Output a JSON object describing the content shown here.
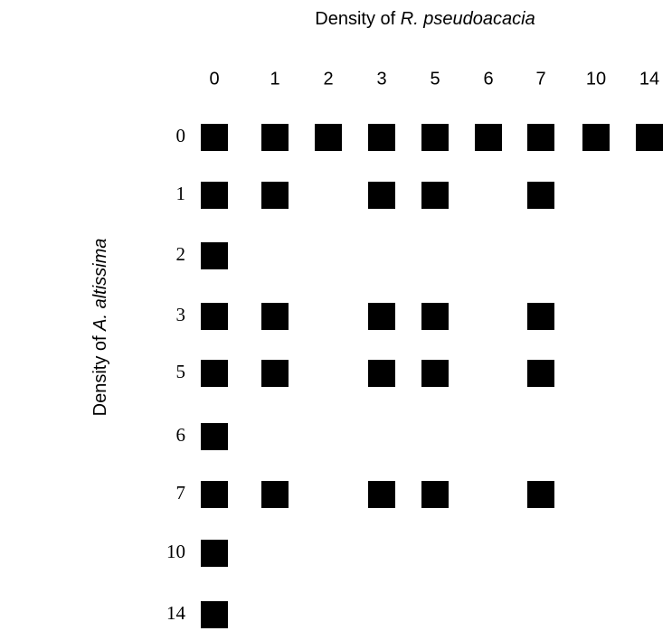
{
  "x_label": {
    "prefix": "Density of",
    "species": "R. pseudoacacia"
  },
  "y_label": {
    "prefix": "Density of",
    "species": "A. altissima"
  },
  "columns": [
    "0",
    "1",
    "2",
    "3",
    "5",
    "6",
    "7",
    "10",
    "14"
  ],
  "rows": [
    {
      "label": "0",
      "cells": [
        true,
        true,
        true,
        true,
        true,
        true,
        true,
        true,
        true
      ]
    },
    {
      "label": "1",
      "cells": [
        true,
        true,
        false,
        true,
        true,
        false,
        true,
        false,
        false
      ]
    },
    {
      "label": "2",
      "cells": [
        true,
        false,
        false,
        false,
        false,
        false,
        false,
        false,
        false
      ]
    },
    {
      "label": "3",
      "cells": [
        true,
        true,
        false,
        true,
        true,
        false,
        true,
        false,
        false
      ]
    },
    {
      "label": "5",
      "cells": [
        true,
        true,
        false,
        true,
        true,
        false,
        true,
        false,
        false
      ]
    },
    {
      "label": "6",
      "cells": [
        true,
        false,
        false,
        false,
        false,
        false,
        false,
        false,
        false
      ]
    },
    {
      "label": "7",
      "cells": [
        true,
        true,
        false,
        true,
        true,
        false,
        true,
        false,
        false
      ]
    },
    {
      "label": "10",
      "cells": [
        true,
        false,
        false,
        false,
        false,
        false,
        false,
        false,
        false
      ]
    },
    {
      "label": "14",
      "cells": [
        true,
        false,
        false,
        false,
        false,
        false,
        false,
        false,
        false
      ]
    }
  ]
}
